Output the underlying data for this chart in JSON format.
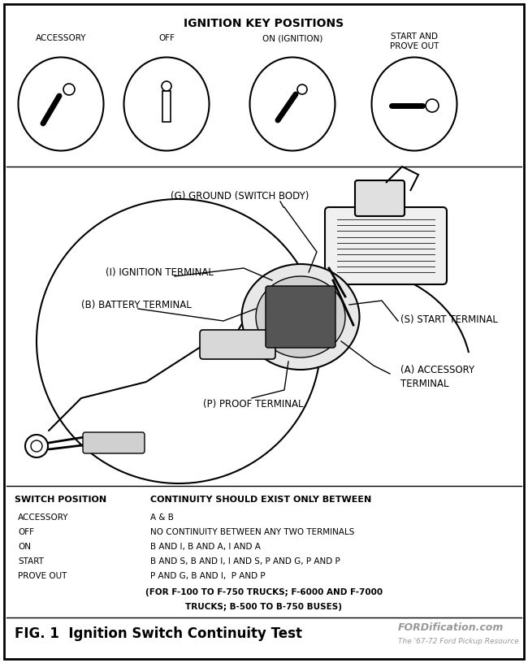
{
  "title": "IGNITION KEY POSITIONS",
  "bg_color": "#ffffff",
  "border_color": "#000000",
  "text_color": "#000000",
  "key_labels": [
    "ACCESSORY",
    "OFF",
    "ON (IGNITION)",
    "START AND\nPROVE OUT"
  ],
  "table_header_left": "SWITCH POSITION",
  "table_header_right": "CONTINUITY SHOULD EXIST ONLY BETWEEN",
  "table_rows": [
    [
      "ACCESSORY",
      "A & B"
    ],
    [
      "OFF",
      "NO CONTINUITY BETWEEN ANY TWO TERMINALS"
    ],
    [
      "ON",
      "B AND I, B AND A, I AND A"
    ],
    [
      "START",
      "B AND S, B AND I, I AND S, P AND G, P AND P"
    ],
    [
      "PROVE OUT",
      "P AND G, B AND I,  P AND P"
    ]
  ],
  "table_note1": "(FOR F-100 TO F-750 TRUCKS; F-6000 AND F-7000",
  "table_note2": "TRUCKS; B-500 TO B-750 BUSES)",
  "fig_caption": "FIG. 1  Ignition Switch Continuity Test",
  "watermark": "FORDification.com",
  "watermark_sub": "The '67-72 Ford Pickup Resource"
}
